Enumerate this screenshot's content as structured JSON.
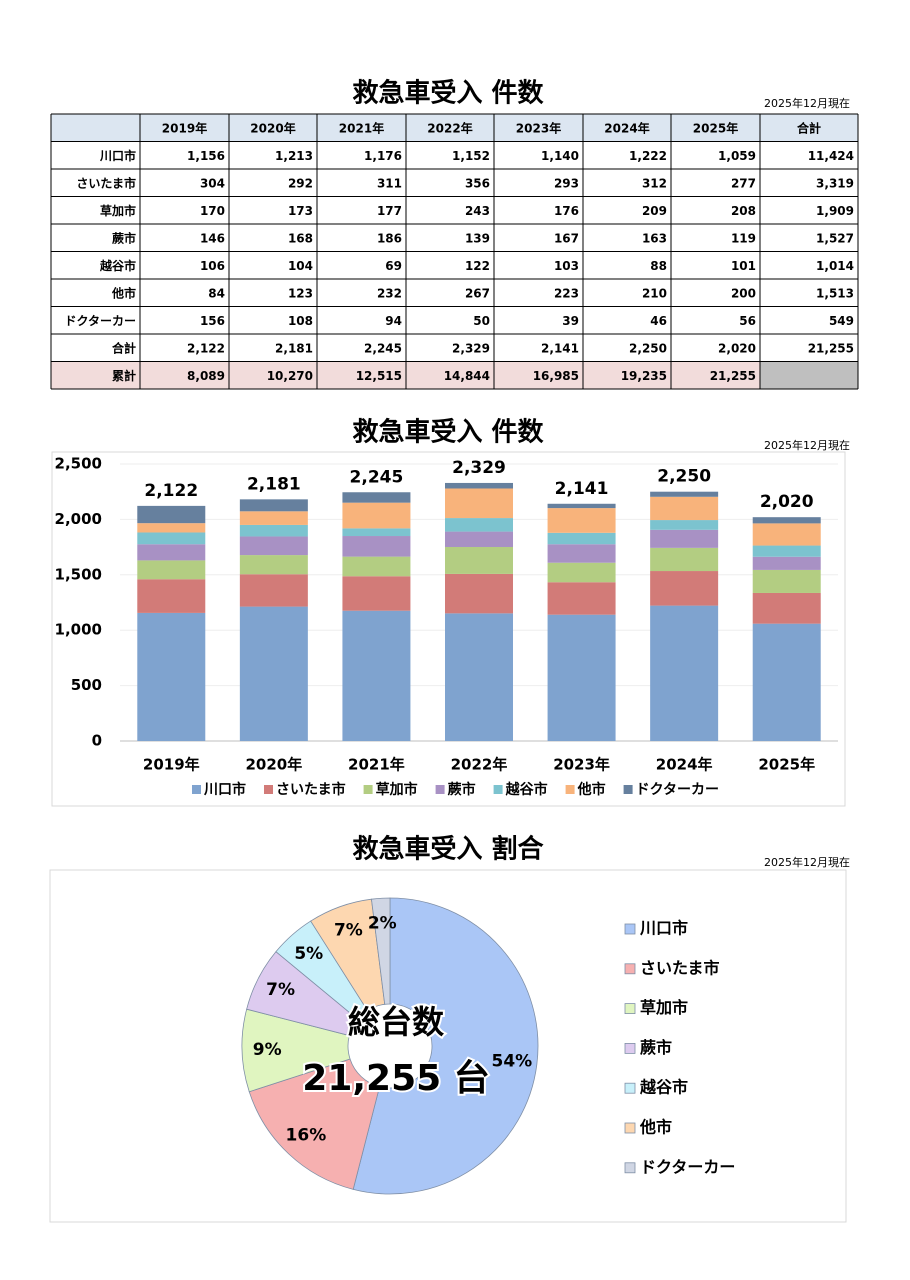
{
  "table": {
    "title": "救急車受入 件数",
    "note": "2025年12月現在",
    "header": [
      "2019年",
      "2020年",
      "2021年",
      "2022年",
      "2023年",
      "2024年",
      "2025年",
      "合計"
    ],
    "rows": [
      [
        "川口市",
        "1,156",
        "1,213",
        "1,176",
        "1,152",
        "1,140",
        "1,222",
        "1,059",
        "11,424"
      ],
      [
        "さいたま市",
        "304",
        "292",
        "311",
        "356",
        "293",
        "312",
        "277",
        "3,319"
      ],
      [
        "草加市",
        "170",
        "173",
        "177",
        "243",
        "176",
        "209",
        "208",
        "1,909"
      ],
      [
        "蕨市",
        "146",
        "168",
        "186",
        "139",
        "167",
        "163",
        "119",
        "1,527"
      ],
      [
        "越谷市",
        "106",
        "104",
        "69",
        "122",
        "103",
        "88",
        "101",
        "1,014"
      ],
      [
        "他市",
        "84",
        "123",
        "232",
        "267",
        "223",
        "210",
        "200",
        "1,513"
      ],
      [
        "ドクターカー",
        "156",
        "108",
        "94",
        "50",
        "39",
        "46",
        "56",
        "549"
      ],
      [
        "合計",
        "2,122",
        "2,181",
        "2,245",
        "2,329",
        "2,141",
        "2,250",
        "2,020",
        "21,255"
      ],
      [
        "累計",
        "8,089",
        "10,270",
        "12,515",
        "14,844",
        "16,985",
        "19,235",
        "21,255"
      ]
    ]
  },
  "chart_data": [
    {
      "type": "bar",
      "stacked": true,
      "title": "救急車受入 件数",
      "note": "2025年12月現在",
      "categories": [
        "2019年",
        "2020年",
        "2021年",
        "2022年",
        "2023年",
        "2024年",
        "2025年"
      ],
      "series": [
        {
          "name": "川口市",
          "color": "#7fa3cf",
          "values": [
            1156,
            1213,
            1176,
            1152,
            1140,
            1222,
            1059
          ]
        },
        {
          "name": "さいたま市",
          "color": "#d27b78",
          "values": [
            304,
            292,
            311,
            356,
            293,
            312,
            277
          ]
        },
        {
          "name": "草加市",
          "color": "#b3cd82",
          "values": [
            170,
            173,
            177,
            243,
            176,
            209,
            208
          ]
        },
        {
          "name": "蕨市",
          "color": "#a891c4",
          "values": [
            146,
            168,
            186,
            139,
            167,
            163,
            119
          ]
        },
        {
          "name": "越谷市",
          "color": "#7cc3cf",
          "values": [
            106,
            104,
            69,
            122,
            103,
            88,
            101
          ]
        },
        {
          "name": "他市",
          "color": "#f8b37b",
          "values": [
            84,
            123,
            232,
            267,
            223,
            210,
            200
          ]
        },
        {
          "name": "ドクターカー",
          "color": "#66809e",
          "values": [
            156,
            108,
            94,
            50,
            39,
            46,
            56
          ]
        }
      ],
      "totals": {
        "values": [
          2122,
          2181,
          2245,
          2329,
          2141,
          2250,
          2020
        ],
        "value_labels": [
          "2,122",
          "2,181",
          "2,245",
          "2,329",
          "2,141",
          "2,250",
          "2,020"
        ],
        "color": "#c0504d"
      },
      "ylim": [
        0,
        2500
      ],
      "yticks": [
        0,
        500,
        {
          "value": 1000,
          "label": "1,000"
        },
        {
          "value": 1500,
          "label": "1,500"
        },
        {
          "value": 2000,
          "label": "2,000"
        },
        {
          "value": 2500,
          "label": "2,500"
        }
      ],
      "grid": true,
      "legend": "bottom"
    },
    {
      "type": "pie",
      "title": "救急車受入 割合",
      "note": "2025年12月現在",
      "categories": [
        "川口市",
        "さいたま市",
        "草加市",
        "蕨市",
        "越谷市",
        "他市",
        "ドクターカー"
      ],
      "values": [
        54,
        16,
        9,
        7,
        5,
        7,
        2
      ],
      "value_labels": [
        "54%",
        "16%",
        "9%",
        "7%",
        "5%",
        "7%",
        "2%"
      ],
      "colors": [
        "#aac6f6",
        "#f6b0b0",
        "#e0f5c0",
        "#ddcbef",
        "#c8f0fa",
        "#fdd7b0",
        "#d0d6e4"
      ],
      "center_title": "総台数",
      "center_total": "21,255 台",
      "legend": "right"
    }
  ]
}
